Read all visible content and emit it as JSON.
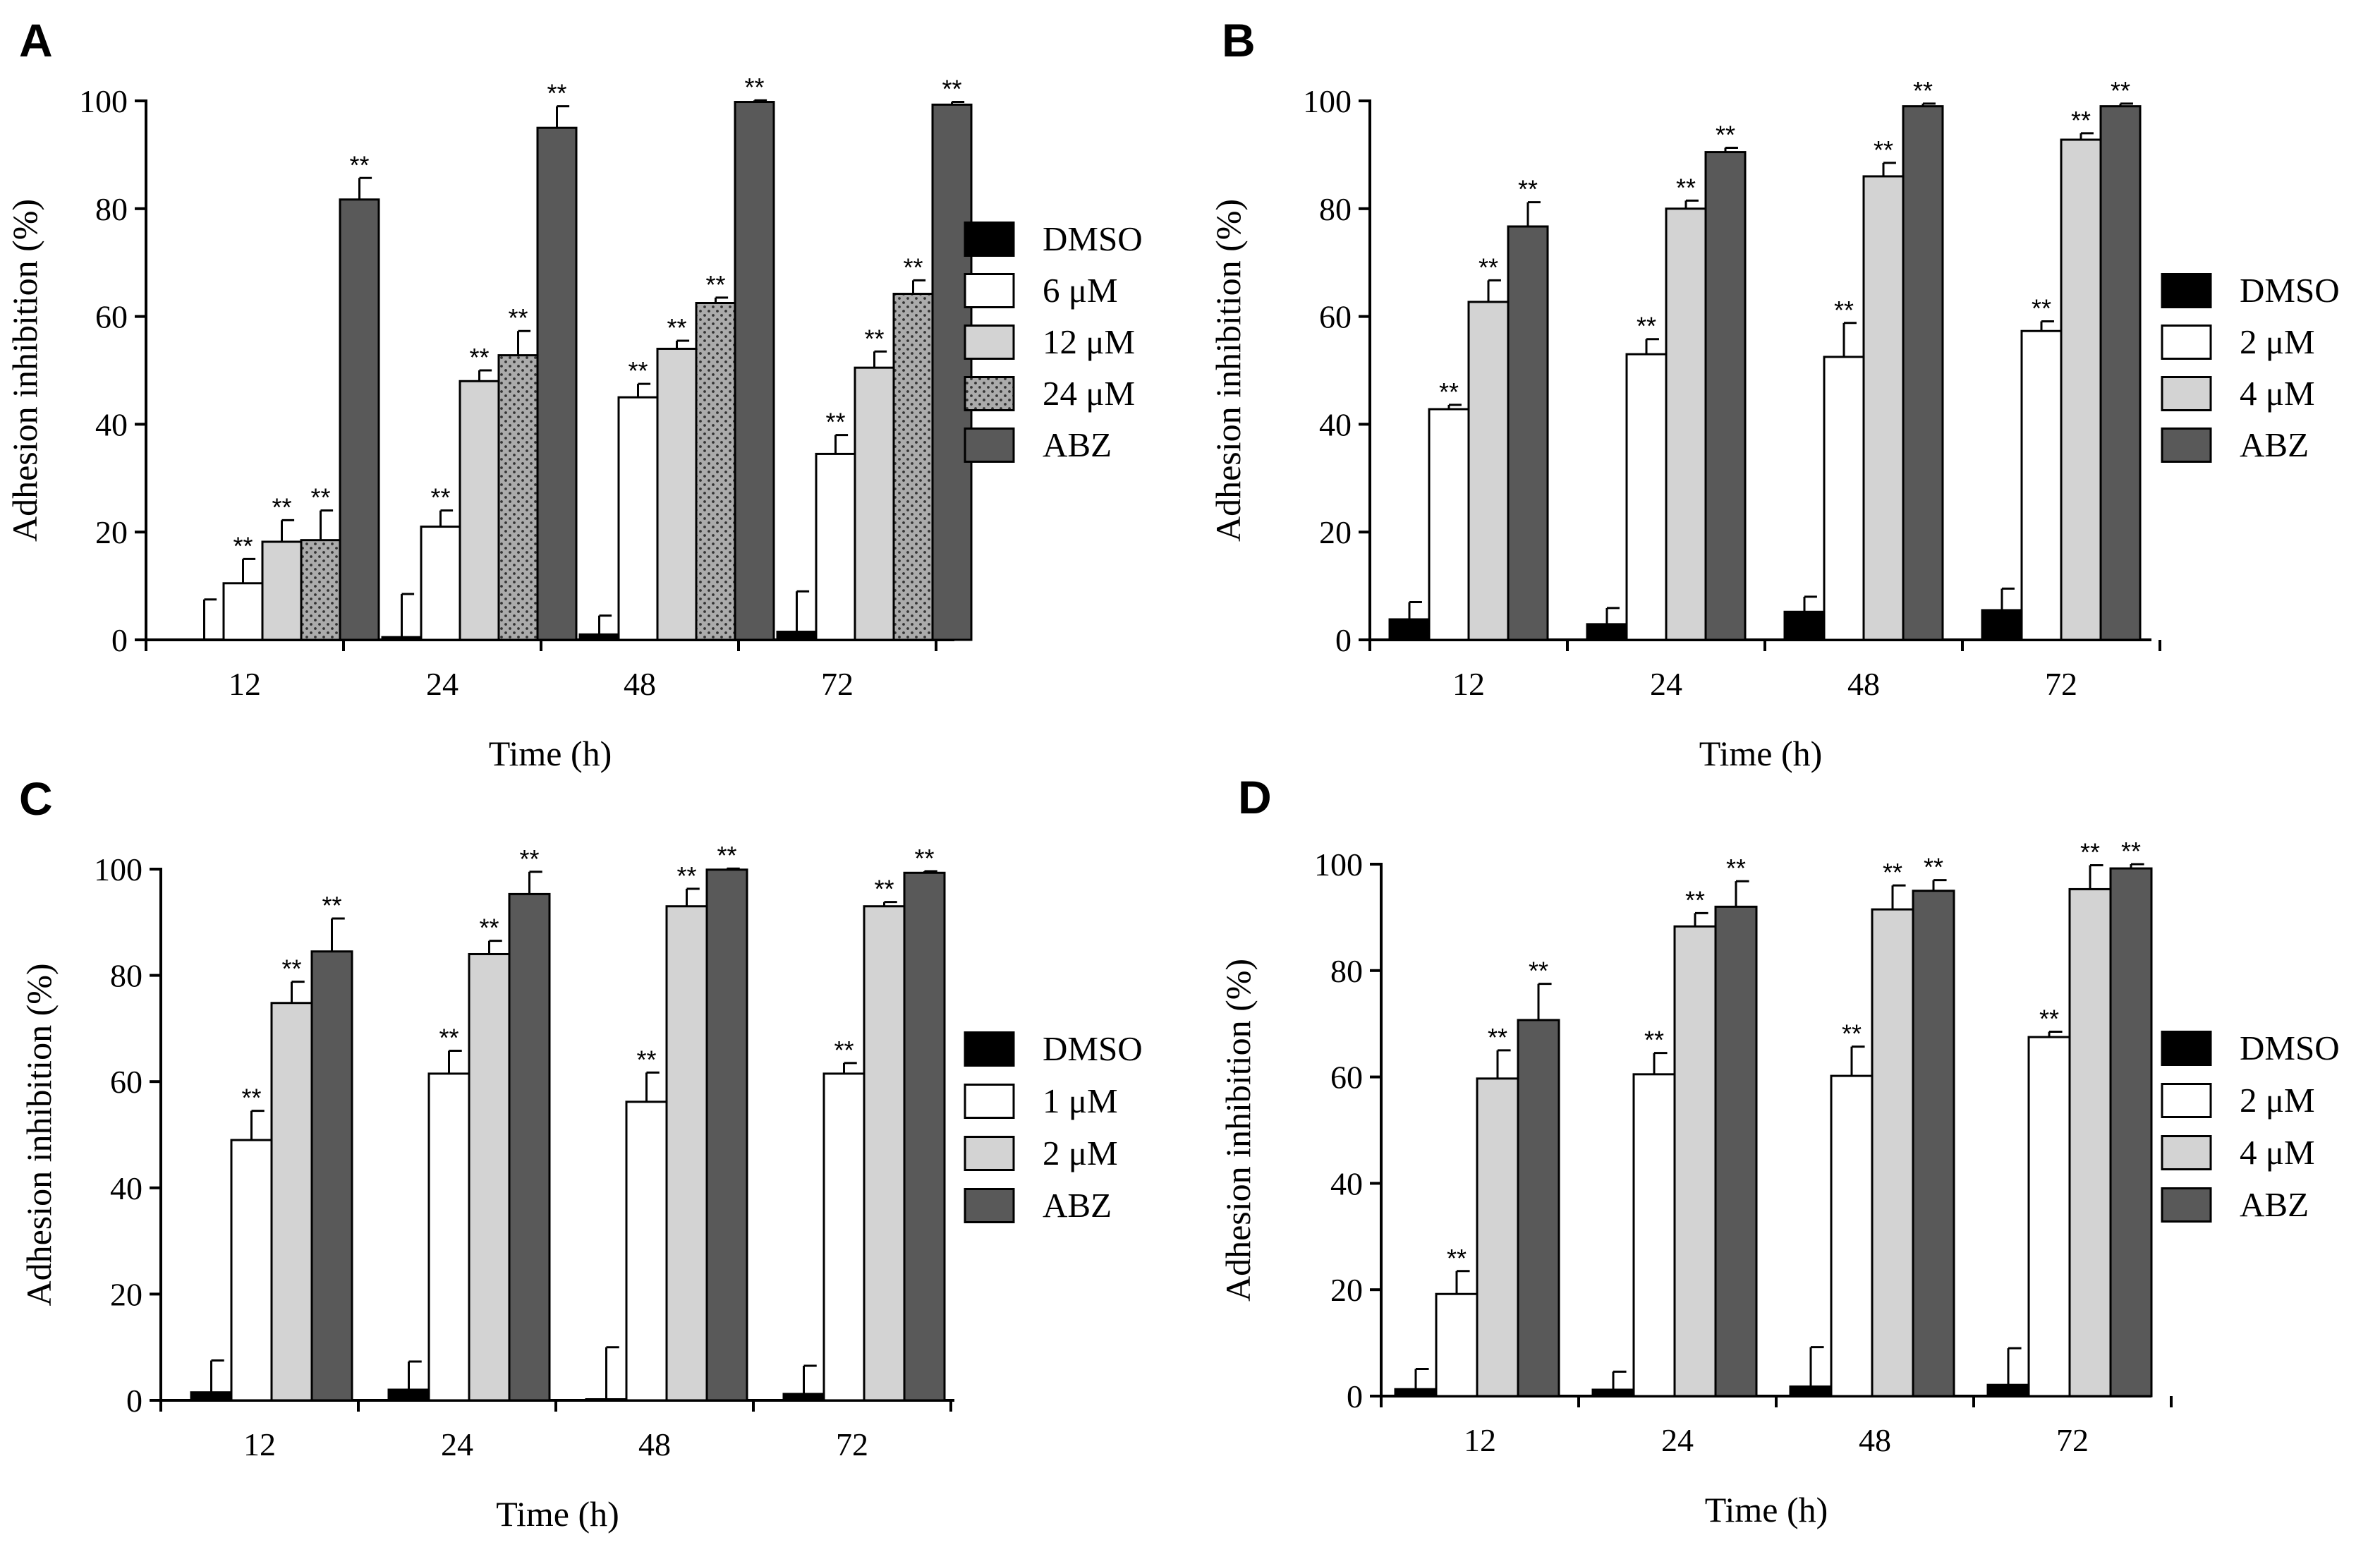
{
  "patterns": {
    "dotted": "dots"
  },
  "chart_data": [
    {
      "type": "bar",
      "panel": "A",
      "xlabel": "Time (h)",
      "ylabel": "Adhesion inhibition (%)",
      "ylim": [
        0,
        100
      ],
      "yticks": [
        0,
        20,
        40,
        60,
        80,
        100
      ],
      "categories": [
        "12",
        "24",
        "48",
        "72"
      ],
      "significance_label": "**",
      "series": [
        {
          "name": "DMSO",
          "color": "#000000",
          "pattern": "",
          "values": [
            0,
            0.5,
            1,
            1.5
          ],
          "errors": [
            7.5,
            8,
            3.5,
            7.5
          ],
          "sig": [
            false,
            false,
            false,
            false
          ]
        },
        {
          "name": "6 μM",
          "color": "#ffffff",
          "pattern": "",
          "values": [
            10.5,
            21,
            45,
            34.5
          ],
          "errors": [
            4.5,
            3,
            2.5,
            3.5
          ],
          "sig": [
            true,
            true,
            true,
            true
          ]
        },
        {
          "name": "12 μM",
          "color": "#d3d3d3",
          "pattern": "",
          "values": [
            18.2,
            48,
            54,
            50.5
          ],
          "errors": [
            4,
            2,
            1.5,
            3
          ],
          "sig": [
            true,
            true,
            true,
            true
          ]
        },
        {
          "name": "24 μM",
          "color": "#a9a9a9",
          "pattern": "dots",
          "values": [
            18.5,
            52.8,
            62.5,
            64.2
          ],
          "errors": [
            5.5,
            4.5,
            1,
            2.5
          ],
          "sig": [
            true,
            true,
            true,
            true
          ]
        },
        {
          "name": "ABZ",
          "color": "#595959",
          "pattern": "",
          "values": [
            81.7,
            95,
            99.8,
            99.3
          ],
          "errors": [
            4,
            4,
            0.3,
            0.5
          ],
          "sig": [
            true,
            true,
            true,
            true
          ]
        }
      ]
    },
    {
      "type": "bar",
      "panel": "B",
      "xlabel": "Time (h)",
      "ylabel": "Adhesion inhibition (%)",
      "ylim": [
        0,
        100
      ],
      "yticks": [
        0,
        20,
        40,
        60,
        80,
        100
      ],
      "categories": [
        "12",
        "24",
        "48",
        "72"
      ],
      "significance_label": "**",
      "series": [
        {
          "name": "DMSO",
          "color": "#000000",
          "pattern": "",
          "values": [
            3.8,
            2.9,
            5.2,
            5.5
          ],
          "errors": [
            3.2,
            3,
            2.8,
            4
          ],
          "sig": [
            false,
            false,
            false,
            false
          ]
        },
        {
          "name": "2 μM",
          "color": "#ffffff",
          "pattern": "",
          "values": [
            42.8,
            53,
            52.5,
            57.3
          ],
          "errors": [
            0.8,
            2.8,
            6.3,
            1.8
          ],
          "sig": [
            true,
            true,
            true,
            true
          ]
        },
        {
          "name": "4 μM",
          "color": "#d3d3d3",
          "pattern": "",
          "values": [
            62.7,
            80,
            86,
            92.8
          ],
          "errors": [
            4,
            1.5,
            2.5,
            1.2
          ],
          "sig": [
            true,
            true,
            true,
            true
          ]
        },
        {
          "name": "ABZ",
          "color": "#595959",
          "pattern": "",
          "values": [
            76.7,
            90.5,
            99,
            99
          ],
          "errors": [
            4.5,
            0.8,
            0.5,
            0.5
          ],
          "sig": [
            true,
            true,
            true,
            true
          ]
        }
      ]
    },
    {
      "type": "bar",
      "panel": "C",
      "xlabel": "Time (h)",
      "ylabel": "Adhesion inhibition (%)",
      "ylim": [
        0,
        100
      ],
      "yticks": [
        0,
        20,
        40,
        60,
        80,
        100
      ],
      "categories": [
        "12",
        "24",
        "48",
        "72"
      ],
      "significance_label": "**",
      "series": [
        {
          "name": "DMSO",
          "color": "#000000",
          "pattern": "",
          "values": [
            1.5,
            2,
            0.2,
            1.2
          ],
          "errors": [
            6,
            5.3,
            9.8,
            5.3
          ],
          "sig": [
            false,
            false,
            false,
            false
          ]
        },
        {
          "name": "1 μM",
          "color": "#ffffff",
          "pattern": "",
          "values": [
            49,
            61.5,
            56.2,
            61.5
          ],
          "errors": [
            5.5,
            4.3,
            5.5,
            2
          ],
          "sig": [
            true,
            true,
            true,
            true
          ]
        },
        {
          "name": "2 μM",
          "color": "#d3d3d3",
          "pattern": "",
          "values": [
            74.8,
            84,
            93,
            93
          ],
          "errors": [
            4,
            2.5,
            3.3,
            0.8
          ],
          "sig": [
            true,
            true,
            true,
            true
          ]
        },
        {
          "name": "ABZ",
          "color": "#595959",
          "pattern": "",
          "values": [
            84.5,
            95.3,
            99.9,
            99.3
          ],
          "errors": [
            6.2,
            4.2,
            0.2,
            0.3
          ],
          "sig": [
            true,
            true,
            true,
            true
          ]
        }
      ]
    },
    {
      "type": "bar",
      "panel": "D",
      "xlabel": "Time (h)",
      "ylabel": "Adhesion inhibition (%)",
      "ylim": [
        0,
        100
      ],
      "yticks": [
        0,
        20,
        40,
        60,
        80,
        100
      ],
      "categories": [
        "12",
        "24",
        "48",
        "72"
      ],
      "significance_label": "**",
      "series": [
        {
          "name": "DMSO",
          "color": "#000000",
          "pattern": "",
          "values": [
            1.3,
            1.2,
            1.8,
            2.1
          ],
          "errors": [
            3.8,
            3.4,
            7.4,
            6.9
          ],
          "sig": [
            false,
            false,
            false,
            false
          ]
        },
        {
          "name": "2 μM",
          "color": "#ffffff",
          "pattern": "",
          "values": [
            19.2,
            60.5,
            60.2,
            67.5
          ],
          "errors": [
            4.3,
            4,
            5.5,
            1
          ],
          "sig": [
            true,
            true,
            true,
            true
          ]
        },
        {
          "name": "4 μM",
          "color": "#d3d3d3",
          "pattern": "",
          "values": [
            59.7,
            88.3,
            91.5,
            95.3
          ],
          "errors": [
            5.3,
            2.5,
            4.5,
            4.5
          ],
          "sig": [
            true,
            true,
            true,
            true
          ]
        },
        {
          "name": "ABZ",
          "color": "#595959",
          "pattern": "",
          "values": [
            70.7,
            92,
            95,
            99.2
          ],
          "errors": [
            6.8,
            4.8,
            2,
            0.8
          ],
          "sig": [
            true,
            true,
            true,
            true
          ]
        }
      ]
    }
  ]
}
